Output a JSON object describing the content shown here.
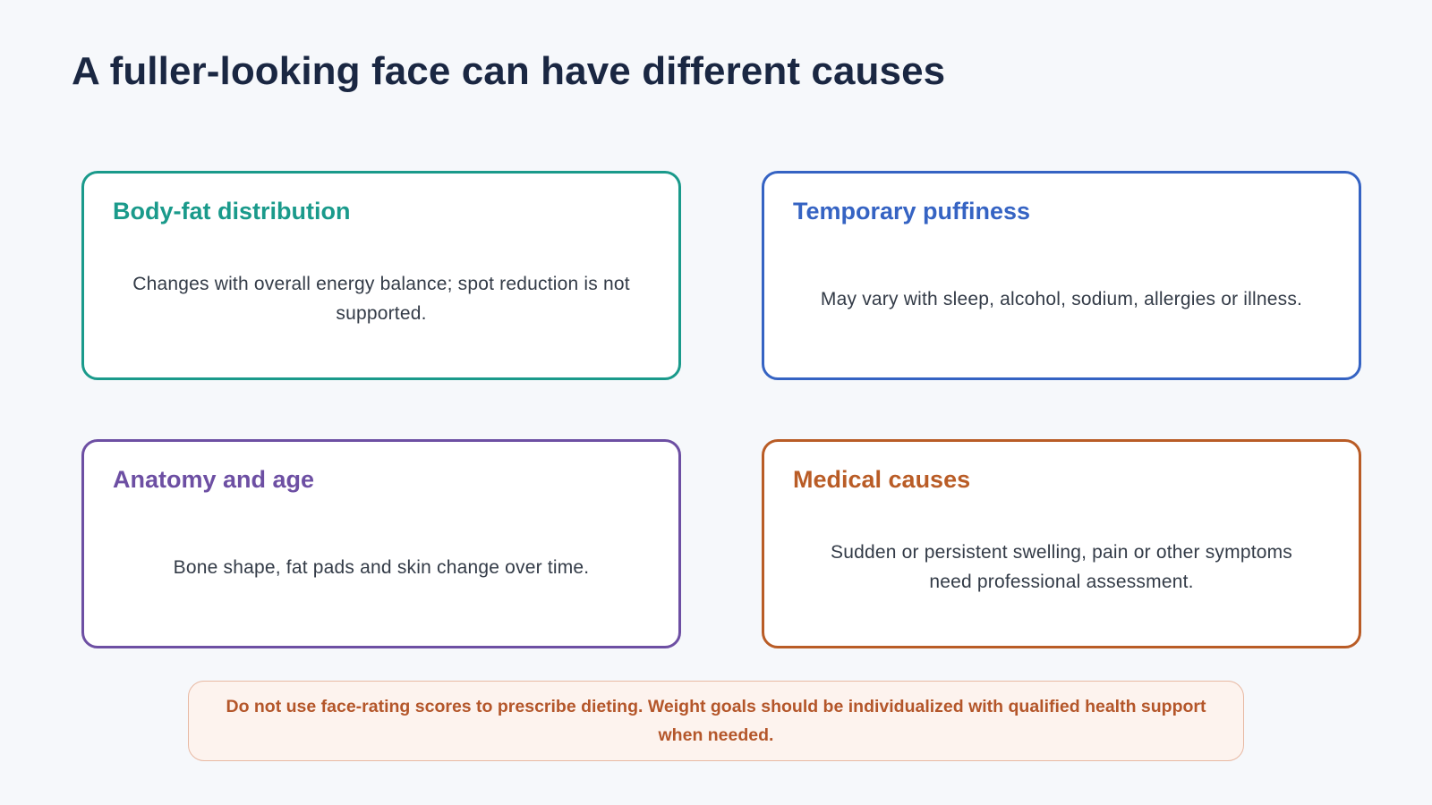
{
  "title": "A fuller-looking face can have different causes",
  "cards": [
    {
      "heading": "Body-fat distribution",
      "body": "Changes with overall energy balance; spot reduction is not supported.",
      "color": "#1a9a8b"
    },
    {
      "heading": "Temporary puffiness",
      "body": "May vary with sleep, alcohol, sodium, allergies or illness.",
      "color": "#3563c3"
    },
    {
      "heading": "Anatomy and age",
      "body": "Bone shape, fat pads and skin change over time.",
      "color": "#6d4fa3"
    },
    {
      "heading": "Medical causes",
      "body": "Sudden or persistent swelling, pain or other symptoms need professional assessment.",
      "color": "#b95c26"
    }
  ],
  "notice": {
    "text": "Do not use face-rating scores to prescribe dieting. Weight goals should be individualized with qualified health support when needed.",
    "color": "#b4562a",
    "background": "#fdf3ee",
    "border_color": "#e8b9a3"
  },
  "colors": {
    "background": "#f6f8fb",
    "title": "#1a2742",
    "body_text": "#333b47"
  }
}
